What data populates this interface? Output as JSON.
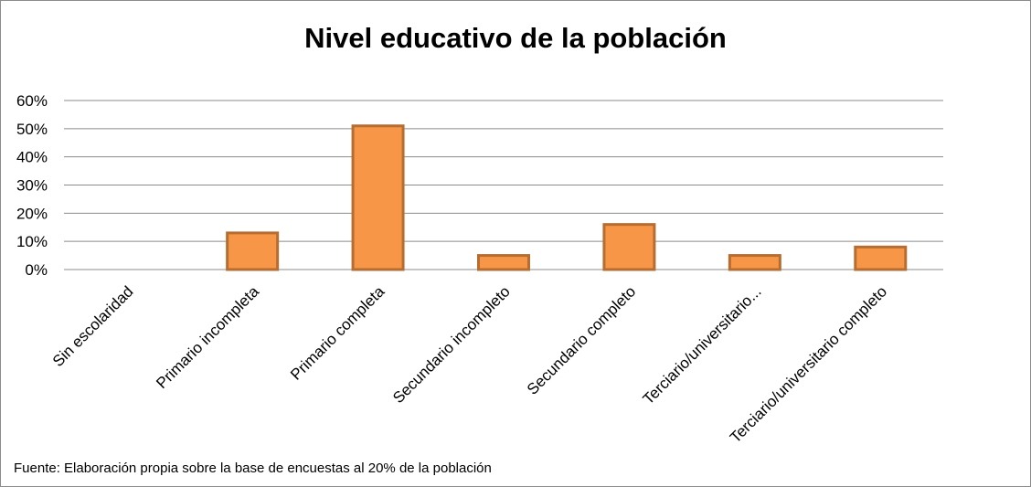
{
  "chart_data": {
    "type": "bar",
    "title": "Nivel educativo de la población",
    "categories": [
      "Sin escolaridad",
      "Primario incompleta",
      "Primario completa",
      "Secundario incompleto",
      "Secundario completo",
      "Terciario/universitario...",
      "Terciario/universitario completo"
    ],
    "values": [
      0,
      13,
      51,
      5,
      16,
      5,
      8
    ],
    "yticks": [
      "0%",
      "10%",
      "20%",
      "30%",
      "40%",
      "50%",
      "60%"
    ],
    "ylim": [
      0,
      60
    ],
    "grid": true,
    "bar_fill": "#f79646",
    "bar_stroke": "#b66d31",
    "source": "Fuente: Elaboración propia sobre la base de encuestas al 20%  de la población"
  }
}
